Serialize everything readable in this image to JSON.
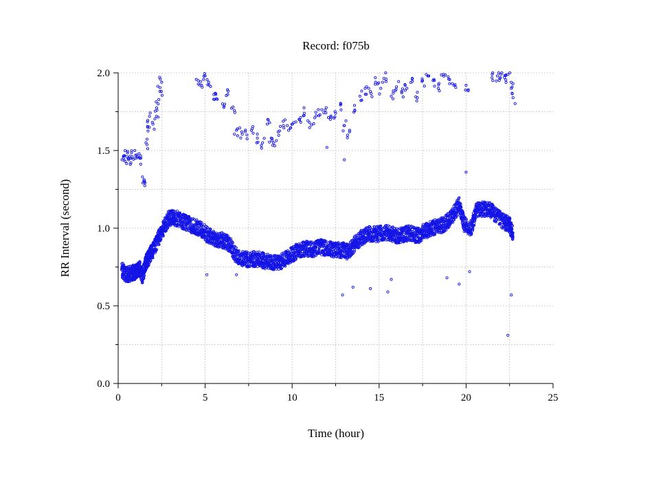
{
  "chart_data": {
    "type": "scatter",
    "title": "Record:  f075b",
    "xlabel": "Time (hour)",
    "ylabel": "RR Interval (second)",
    "xlim": [
      0,
      25
    ],
    "ylim": [
      0.0,
      2.0
    ],
    "x_ticks": [
      0,
      5,
      10,
      15,
      20,
      25
    ],
    "x_minor_ticks": [
      2.5,
      7.5,
      12.5,
      17.5,
      22.5
    ],
    "y_ticks": [
      0.0,
      0.5,
      1.0,
      1.5,
      2.0
    ],
    "y_tick_labels": [
      "0.0",
      "0.5",
      "1.0",
      "1.5",
      "2.0"
    ],
    "y_minor_ticks": [
      0.25,
      0.75,
      1.25,
      1.75
    ],
    "grid": true,
    "marker": "open-circle",
    "point_color": "#1414e6",
    "series": [
      {
        "name": "",
        "main_band": [
          [
            0.2,
            0.73
          ],
          [
            0.5,
            0.7
          ],
          [
            0.8,
            0.71
          ],
          [
            1.0,
            0.72
          ],
          [
            1.2,
            0.75
          ],
          [
            1.4,
            0.69
          ],
          [
            1.6,
            0.78
          ],
          [
            1.8,
            0.82
          ],
          [
            2.0,
            0.86
          ],
          [
            2.3,
            0.93
          ],
          [
            2.6,
            1.0
          ],
          [
            2.9,
            1.06
          ],
          [
            3.2,
            1.07
          ],
          [
            3.6,
            1.05
          ],
          [
            4.0,
            1.03
          ],
          [
            4.4,
            1.01
          ],
          [
            4.8,
            0.99
          ],
          [
            5.2,
            0.95
          ],
          [
            5.6,
            0.93
          ],
          [
            6.0,
            0.92
          ],
          [
            6.4,
            0.9
          ],
          [
            6.8,
            0.82
          ],
          [
            7.2,
            0.8
          ],
          [
            7.6,
            0.8
          ],
          [
            8.0,
            0.8
          ],
          [
            8.4,
            0.79
          ],
          [
            8.8,
            0.78
          ],
          [
            9.2,
            0.78
          ],
          [
            9.6,
            0.8
          ],
          [
            10.0,
            0.83
          ],
          [
            10.4,
            0.86
          ],
          [
            10.8,
            0.87
          ],
          [
            11.2,
            0.86
          ],
          [
            11.6,
            0.88
          ],
          [
            12.0,
            0.87
          ],
          [
            12.4,
            0.86
          ],
          [
            12.8,
            0.86
          ],
          [
            13.2,
            0.85
          ],
          [
            13.6,
            0.9
          ],
          [
            14.0,
            0.94
          ],
          [
            14.4,
            0.96
          ],
          [
            14.8,
            0.96
          ],
          [
            15.2,
            0.97
          ],
          [
            15.6,
            0.97
          ],
          [
            16.0,
            0.95
          ],
          [
            16.4,
            0.96
          ],
          [
            16.8,
            0.97
          ],
          [
            17.2,
            0.95
          ],
          [
            17.6,
            0.98
          ],
          [
            18.0,
            1.0
          ],
          [
            18.4,
            1.01
          ],
          [
            18.8,
            1.03
          ],
          [
            19.2,
            1.08
          ],
          [
            19.6,
            1.15
          ],
          [
            19.9,
            1.02
          ],
          [
            20.3,
            1.0
          ],
          [
            20.6,
            1.12
          ],
          [
            21.0,
            1.12
          ],
          [
            21.4,
            1.12
          ],
          [
            21.8,
            1.07
          ],
          [
            22.2,
            1.04
          ],
          [
            22.5,
            1.02
          ],
          [
            22.7,
            0.96
          ]
        ],
        "band_spread": 0.05,
        "upper_points": [
          [
            0.3,
            1.45
          ],
          [
            0.4,
            1.43
          ],
          [
            0.5,
            1.46
          ],
          [
            0.6,
            1.44
          ],
          [
            0.7,
            1.41
          ],
          [
            0.8,
            1.46
          ],
          [
            1.0,
            1.47
          ],
          [
            1.2,
            1.48
          ],
          [
            1.3,
            1.45
          ],
          [
            1.4,
            1.33
          ],
          [
            1.5,
            1.31
          ],
          [
            1.6,
            1.55
          ],
          [
            1.7,
            1.65
          ],
          [
            1.8,
            1.72
          ],
          [
            2.0,
            1.67
          ],
          [
            2.2,
            1.72
          ],
          [
            2.3,
            1.8
          ],
          [
            2.4,
            1.88
          ],
          [
            2.5,
            1.94
          ],
          [
            4.6,
            1.95
          ],
          [
            4.8,
            1.92
          ],
          [
            5.0,
            1.98
          ],
          [
            5.2,
            1.94
          ],
          [
            5.5,
            1.86
          ],
          [
            5.7,
            1.83
          ],
          [
            6.0,
            1.8
          ],
          [
            6.3,
            1.86
          ],
          [
            6.6,
            1.78
          ],
          [
            6.8,
            1.63
          ],
          [
            7.1,
            1.62
          ],
          [
            7.4,
            1.6
          ],
          [
            7.7,
            1.64
          ],
          [
            8.0,
            1.58
          ],
          [
            8.3,
            1.55
          ],
          [
            8.6,
            1.7
          ],
          [
            8.8,
            1.58
          ],
          [
            9.0,
            1.53
          ],
          [
            9.2,
            1.62
          ],
          [
            9.5,
            1.66
          ],
          [
            9.8,
            1.63
          ],
          [
            10.1,
            1.68
          ],
          [
            10.4,
            1.7
          ],
          [
            10.7,
            1.74
          ],
          [
            11.0,
            1.68
          ],
          [
            11.3,
            1.71
          ],
          [
            11.6,
            1.73
          ],
          [
            11.9,
            1.76
          ],
          [
            12.2,
            1.7
          ],
          [
            12.5,
            1.74
          ],
          [
            12.8,
            1.8
          ],
          [
            13.0,
            1.66
          ],
          [
            13.3,
            1.62
          ],
          [
            13.6,
            1.76
          ],
          [
            13.9,
            1.85
          ],
          [
            14.2,
            1.9
          ],
          [
            14.5,
            1.88
          ],
          [
            14.8,
            1.94
          ],
          [
            15.1,
            1.9
          ],
          [
            15.4,
            1.96
          ],
          [
            15.7,
            1.85
          ],
          [
            16.0,
            1.91
          ],
          [
            16.3,
            1.88
          ],
          [
            16.6,
            1.9
          ],
          [
            16.9,
            1.96
          ],
          [
            17.2,
            1.84
          ],
          [
            17.5,
            1.95
          ],
          [
            17.8,
            1.98
          ],
          [
            18.1,
            1.95
          ],
          [
            18.4,
            1.9
          ],
          [
            18.7,
            1.99
          ],
          [
            19.0,
            1.96
          ],
          [
            19.3,
            1.92
          ],
          [
            20.0,
            1.92
          ],
          [
            21.5,
            1.99
          ],
          [
            21.8,
            1.98
          ],
          [
            22.0,
            1.99
          ],
          [
            22.2,
            1.97
          ],
          [
            22.4,
            1.99
          ],
          [
            22.6,
            1.9
          ],
          [
            22.7,
            1.84
          ]
        ],
        "outliers": [
          [
            5.1,
            0.7
          ],
          [
            6.8,
            0.7
          ],
          [
            12.9,
            0.57
          ],
          [
            13.5,
            0.62
          ],
          [
            14.5,
            0.61
          ],
          [
            15.5,
            0.59
          ],
          [
            15.7,
            0.67
          ],
          [
            18.9,
            0.68
          ],
          [
            19.6,
            0.64
          ],
          [
            20.2,
            0.72
          ],
          [
            20.0,
            1.36
          ],
          [
            22.6,
            0.57
          ],
          [
            22.4,
            0.31
          ],
          [
            12.0,
            1.52
          ],
          [
            13.0,
            1.44
          ]
        ]
      }
    ]
  }
}
